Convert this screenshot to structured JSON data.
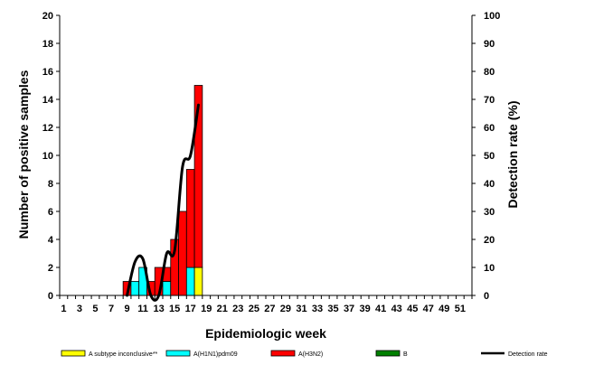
{
  "chart_data": {
    "type": "bar",
    "stacked": true,
    "xlabel": "Epidemiologic week",
    "ylabel": "Number of positive samples",
    "y2label": "Detection rate (%)",
    "ylim": [
      0,
      20
    ],
    "y2lim": [
      0,
      100
    ],
    "y_ticks": [
      0,
      2,
      4,
      6,
      8,
      10,
      12,
      14,
      16,
      18,
      20
    ],
    "y2_ticks": [
      0,
      10,
      20,
      30,
      40,
      50,
      60,
      70,
      80,
      90,
      100
    ],
    "x_weeks": [
      1,
      52
    ],
    "x_tick_labels": [
      "1",
      "3",
      "5",
      "7",
      "9",
      "11",
      "13",
      "15",
      "17",
      "19",
      "21",
      "23",
      "25",
      "27",
      "29",
      "31",
      "33",
      "35",
      "37",
      "39",
      "41",
      "43",
      "45",
      "47",
      "49",
      "51"
    ],
    "weeks": [
      9,
      10,
      11,
      12,
      13,
      14,
      15,
      16,
      17,
      18
    ],
    "series": [
      {
        "name": "A subtype inconclusive**",
        "color": "#ffff00",
        "values": [
          0,
          0,
          0,
          0,
          0,
          0,
          0,
          0,
          0,
          2
        ]
      },
      {
        "name": "A(H1N1)pdm09",
        "color": "#00ffff",
        "values": [
          0,
          1,
          2,
          0,
          0,
          1,
          0,
          0,
          2,
          0
        ]
      },
      {
        "name": "A(H3N2)",
        "color": "#ff0000",
        "values": [
          1,
          0,
          0,
          1,
          2,
          1,
          4,
          6,
          7,
          13
        ]
      },
      {
        "name": "B",
        "color": "#008000",
        "values": [
          0,
          0,
          0,
          0,
          0,
          0,
          0,
          0,
          0,
          0
        ]
      }
    ],
    "line": {
      "name": "Detection rate",
      "color": "#000000",
      "weeks": [
        9,
        10,
        11,
        12,
        13,
        14,
        15,
        16,
        17,
        18
      ],
      "values": [
        0,
        12,
        13,
        0,
        0,
        15,
        16,
        46,
        50,
        68
      ]
    },
    "grid": false,
    "legend_position": "bottom"
  }
}
